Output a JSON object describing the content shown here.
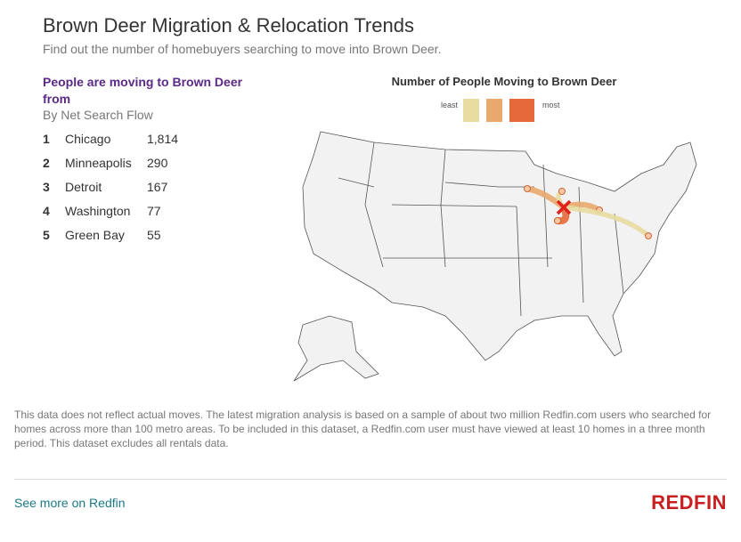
{
  "header": {
    "title": "Brown Deer Migration & Relocation Trends",
    "subtitle": "Find out the number of homebuyers searching to move into Brown Deer."
  },
  "list": {
    "heading": "People are moving to Brown Deer from",
    "subheading": "By Net Search Flow",
    "rows": [
      {
        "rank": "1",
        "city": "Chicago",
        "count": {
          "value": 1814,
          "label": "1,814"
        }
      },
      {
        "rank": "2",
        "city": "Minneapolis",
        "count": 290
      },
      {
        "rank": "3",
        "city": "Detroit",
        "count": 167
      },
      {
        "rank": "4",
        "city": "Washington",
        "count": 77
      },
      {
        "rank": "5",
        "city": "Green Bay",
        "count": 55
      }
    ]
  },
  "map": {
    "title": "Number of People Moving to Brown Deer",
    "legend": {
      "least": "least",
      "most": "most"
    }
  },
  "footnote": "This data does not reflect actual moves. The latest migration analysis is based on a sample of about two million Redfin.com users who searched for homes across more than 100 metro areas. To be included in this dataset, a Redfin.com user must have viewed at least 10 homes in a three month period. This dataset excludes all rentals data.",
  "footer": {
    "link": "See more on Redfin",
    "logo": "REDFIN"
  }
}
